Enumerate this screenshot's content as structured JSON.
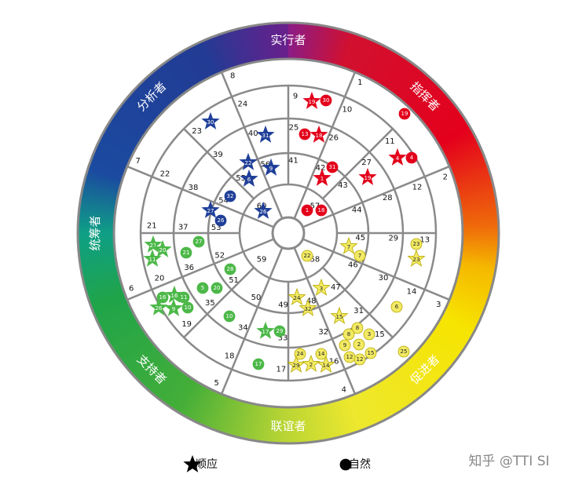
{
  "wheel": {
    "sectors": [
      "实行者",
      "指挥者",
      "促进者",
      "联谊者",
      "支持者",
      "统筹者",
      "分析者"
    ],
    "numbers": [
      1,
      2,
      3,
      4,
      5,
      6,
      7,
      8,
      9,
      10,
      11,
      12,
      13,
      14,
      15,
      16,
      17,
      18,
      19,
      20,
      21,
      22,
      23,
      24,
      25,
      26,
      27,
      28,
      29,
      30,
      31,
      32,
      33,
      34,
      35,
      36,
      37,
      38,
      39,
      40,
      41,
      42,
      43,
      44,
      45,
      46,
      47,
      48,
      49,
      50,
      51,
      52,
      53,
      54,
      55,
      56,
      57,
      58,
      59,
      60
    ],
    "markers": [
      {
        "shape": "star",
        "color": "#e3001b",
        "label": 19
      },
      {
        "shape": "circle",
        "color": "#e3001b",
        "label": 30
      },
      {
        "shape": "circle",
        "color": "#e3001b",
        "label": 19
      },
      {
        "shape": "circle",
        "color": "#e3001b",
        "label": 13
      },
      {
        "shape": "star",
        "color": "#e3001b",
        "label": 18
      },
      {
        "shape": "circle",
        "color": "#e3001b",
        "label": 31
      },
      {
        "shape": "star",
        "color": "#e3001b",
        "label": 1
      },
      {
        "shape": "star",
        "color": "#e3001b",
        "label": 4
      },
      {
        "shape": "circle",
        "color": "#e3001b",
        "label": 4
      },
      {
        "shape": "star",
        "color": "#e3001b",
        "label": 19
      },
      {
        "shape": "circle",
        "color": "#e3001b",
        "label": 1
      },
      {
        "shape": "circle",
        "color": "#e3001b",
        "label": 18
      },
      {
        "shape": "star",
        "color": "#1f3f98",
        "label": 30
      },
      {
        "shape": "star",
        "color": "#1f3f98",
        "label": 31
      },
      {
        "shape": "star",
        "color": "#1f3f98",
        "label": 22
      },
      {
        "shape": "star",
        "color": "#1f3f98",
        "label": 9
      },
      {
        "shape": "star",
        "color": "#1f3f98",
        "label": 6
      },
      {
        "shape": "circle",
        "color": "#1f3f98",
        "label": 32
      },
      {
        "shape": "star",
        "color": "#1f3f98",
        "label": 27
      },
      {
        "shape": "circle",
        "color": "#1f3f98",
        "label": 26
      },
      {
        "shape": "star",
        "color": "#1f3f98",
        "label": 26
      },
      {
        "shape": "star",
        "color": "#4cb848",
        "label": 21
      },
      {
        "shape": "star",
        "color": "#4cb848",
        "label": 20
      },
      {
        "shape": "star",
        "color": "#4cb848",
        "label": 11
      },
      {
        "shape": "circle",
        "color": "#4cb848",
        "label": 21
      },
      {
        "shape": "circle",
        "color": "#4cb848",
        "label": 27
      },
      {
        "shape": "circle",
        "color": "#4cb848",
        "label": 28
      },
      {
        "shape": "circle",
        "color": "#4cb848",
        "label": 5
      },
      {
        "shape": "circle",
        "color": "#4cb848",
        "label": 20
      },
      {
        "shape": "star",
        "color": "#4cb848",
        "label": 16
      },
      {
        "shape": "circle",
        "color": "#4cb848",
        "label": 16
      },
      {
        "shape": "circle",
        "color": "#4cb848",
        "label": 11
      },
      {
        "shape": "star",
        "color": "#4cb848",
        "label": 26
      },
      {
        "shape": "star",
        "color": "#4cb848",
        "label": 9
      },
      {
        "shape": "circle",
        "color": "#4cb848",
        "label": 10
      },
      {
        "shape": "circle",
        "color": "#4cb848",
        "label": 10
      },
      {
        "shape": "star",
        "color": "#4cb848",
        "label": 17
      },
      {
        "shape": "circle",
        "color": "#4cb848",
        "label": 29
      },
      {
        "shape": "circle",
        "color": "#4cb848",
        "label": 17
      },
      {
        "shape": "star",
        "color": "#f2ea64",
        "label": 7
      },
      {
        "shape": "circle",
        "color": "#f2ea64",
        "label": 7
      },
      {
        "shape": "circle",
        "color": "#f2ea64",
        "label": 23
      },
      {
        "shape": "star",
        "color": "#f2ea64",
        "label": 23
      },
      {
        "shape": "circle",
        "color": "#f2ea64",
        "label": 22
      },
      {
        "shape": "star",
        "color": "#f2ea64",
        "label": 3
      },
      {
        "shape": "star",
        "color": "#f2ea64",
        "label": 24
      },
      {
        "shape": "star",
        "color": "#f2ea64",
        "label": 32
      },
      {
        "shape": "circle",
        "color": "#f2ea64",
        "label": 6
      },
      {
        "shape": "star",
        "color": "#f2ea64",
        "label": 15
      },
      {
        "shape": "circle",
        "color": "#f2ea64",
        "label": 8
      },
      {
        "shape": "circle",
        "color": "#f2ea64",
        "label": 3
      },
      {
        "shape": "circle",
        "color": "#f2ea64",
        "label": 8
      },
      {
        "shape": "circle",
        "color": "#f2ea64",
        "label": 9
      },
      {
        "shape": "circle",
        "color": "#f2ea64",
        "label": 2
      },
      {
        "shape": "circle",
        "color": "#f2ea64",
        "label": 15
      },
      {
        "shape": "circle",
        "color": "#f2ea64",
        "label": 12
      },
      {
        "shape": "circle",
        "color": "#f2ea64",
        "label": 12
      },
      {
        "shape": "circle",
        "color": "#f2ea64",
        "label": 25
      },
      {
        "shape": "circle",
        "color": "#f2ea64",
        "label": 24
      },
      {
        "shape": "circle",
        "color": "#f2ea64",
        "label": 14
      },
      {
        "shape": "star",
        "color": "#f2ea64",
        "label": 29
      },
      {
        "shape": "star",
        "color": "#f2ea64",
        "label": 2
      },
      {
        "shape": "star",
        "color": "#f2ea64",
        "label": 14
      }
    ]
  },
  "legend": [
    {
      "shape": "star",
      "label": "顺应"
    },
    {
      "shape": "circle",
      "label": "自然"
    }
  ],
  "watermark": "知乎 @TTI SI"
}
